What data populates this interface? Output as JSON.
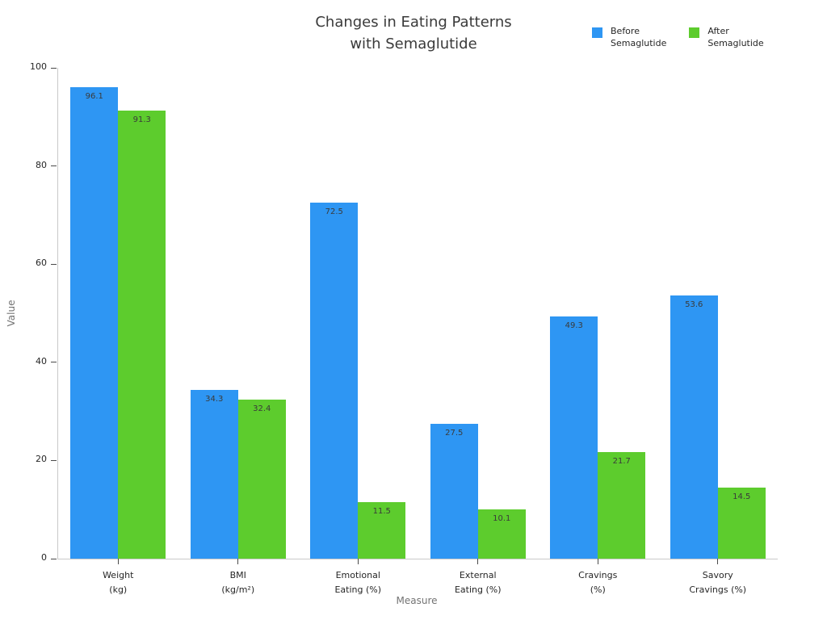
{
  "header": {
    "title": "Changes in Eating Patterns\nwith Semaglutide"
  },
  "legend": {
    "items": [
      {
        "label": "Before\nSemaglutide",
        "color": "#2E96F3"
      },
      {
        "label": "After\nSemaglutide",
        "color": "#5DCC2D"
      }
    ]
  },
  "chart_data": {
    "type": "bar",
    "title": "Changes in Eating Patterns with Semaglutide",
    "categories": [
      "Weight\n(kg)",
      "BMI\n(kg/m²)",
      "Emotional\nEating (%)",
      "External\nEating (%)",
      "Cravings\n(%)",
      "Savory\nCravings (%)"
    ],
    "series": [
      {
        "name": "Before Semaglutide",
        "color": "#2E96F3",
        "values": [
          96.1,
          34.3,
          72.5,
          27.5,
          49.3,
          53.6
        ]
      },
      {
        "name": "After Semaglutide",
        "color": "#5DCC2D",
        "values": [
          91.3,
          32.4,
          11.5,
          10.1,
          21.7,
          14.5
        ]
      }
    ],
    "xlabel": "Measure",
    "ylabel": "Value",
    "ylim": [
      0,
      100
    ],
    "yticks": [
      0,
      20,
      40,
      60,
      80,
      100
    ],
    "grid": false,
    "legend_position": "top-right",
    "value_labels": true
  }
}
